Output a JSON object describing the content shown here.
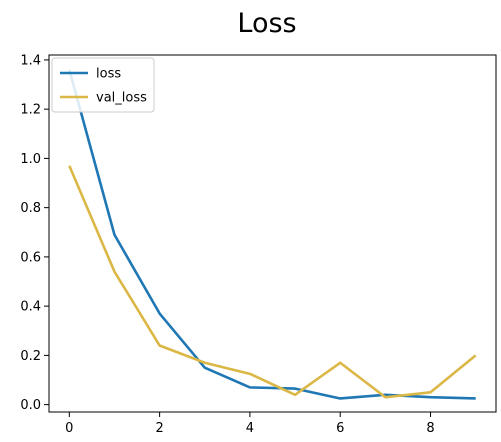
{
  "chart_data": {
    "type": "line",
    "title": "Loss",
    "xlabel": "",
    "ylabel": "",
    "x": [
      0,
      1,
      2,
      3,
      4,
      5,
      6,
      7,
      8,
      9
    ],
    "xlim": [
      -0.45,
      9.45
    ],
    "ylim": [
      -0.03,
      1.42
    ],
    "xticks": [
      0,
      2,
      4,
      6,
      8
    ],
    "xtick_labels": [
      "0",
      "2",
      "4",
      "6",
      "8"
    ],
    "yticks": [
      0.0,
      0.2,
      0.4,
      0.6,
      0.8,
      1.0,
      1.2,
      1.4
    ],
    "ytick_labels": [
      "0.0",
      "0.2",
      "0.4",
      "0.6",
      "0.8",
      "1.0",
      "1.2",
      "1.4"
    ],
    "grid": false,
    "legend_position": "top-left",
    "series": [
      {
        "name": "loss",
        "color": "#1f77b4",
        "values": [
          1.36,
          0.69,
          0.37,
          0.15,
          0.07,
          0.065,
          0.025,
          0.04,
          0.03,
          0.025
        ]
      },
      {
        "name": "val_loss",
        "color": "#dbb746",
        "values": [
          0.97,
          0.54,
          0.24,
          0.17,
          0.125,
          0.04,
          0.17,
          0.03,
          0.05,
          0.2
        ]
      }
    ]
  }
}
